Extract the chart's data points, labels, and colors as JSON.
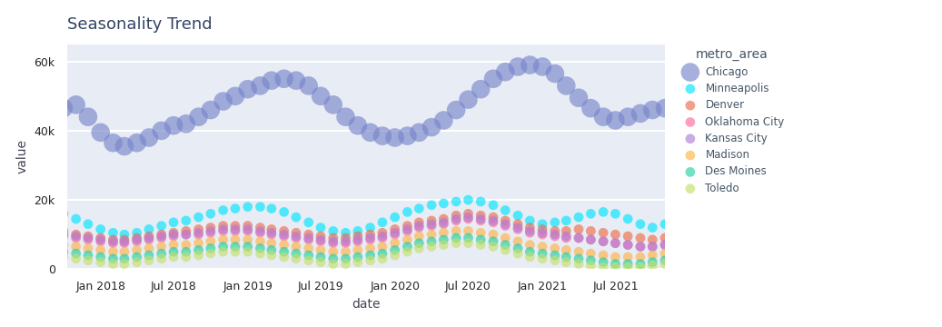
{
  "title": "Seasonality Trend",
  "xlabel": "date",
  "ylabel": "value",
  "metro_areas": [
    "Chicago",
    "Denver",
    "Des Moines",
    "Kansas City",
    "Madison",
    "Minneapolis",
    "Oklahoma City",
    "Toledo"
  ],
  "colors": {
    "Chicago": "#7986cb",
    "Denver": "#ef6c4a",
    "Des Moines": "#26d0a2",
    "Kansas City": "#b07fd4",
    "Madison": "#ffb347",
    "Minneapolis": "#00e5ff",
    "Oklahoma City": "#ff6b9d",
    "Toledo": "#c5e06a"
  },
  "n_months": 50,
  "chicago_vals": [
    46500,
    47500,
    44000,
    39500,
    36500,
    35500,
    36500,
    38000,
    40000,
    41500,
    42000,
    44000,
    46000,
    48500,
    50000,
    52000,
    53000,
    54500,
    55000,
    54500,
    53000,
    50000,
    47500,
    44000,
    41500,
    39500,
    38500,
    38000,
    38500,
    39500,
    41000,
    43000,
    46000,
    49000,
    52000,
    55000,
    57000,
    58500,
    59000,
    58500,
    56500,
    53000,
    49500,
    46500,
    44000,
    43000,
    44000,
    45000,
    46000,
    46500
  ],
  "minneapolis_vals": [
    16000,
    14500,
    13000,
    11500,
    10500,
    10000,
    10500,
    11500,
    12500,
    13500,
    14000,
    15000,
    16000,
    17000,
    17500,
    18000,
    18000,
    17500,
    16500,
    15000,
    13500,
    12000,
    11000,
    10500,
    11000,
    12000,
    13500,
    15000,
    16500,
    17500,
    18500,
    19000,
    19500,
    20000,
    19500,
    18500,
    17000,
    15500,
    14000,
    13000,
    13500,
    14000,
    15000,
    16000,
    16500,
    16000,
    14500,
    13000,
    12000,
    13000
  ],
  "denver_vals": [
    11000,
    10000,
    9500,
    9000,
    8500,
    8500,
    9000,
    9500,
    10000,
    10500,
    11000,
    11500,
    12000,
    12500,
    12500,
    12500,
    12000,
    11500,
    11000,
    10500,
    10000,
    9500,
    9000,
    9000,
    9500,
    10000,
    10500,
    11500,
    12500,
    13500,
    14000,
    14500,
    15500,
    16000,
    15500,
    15000,
    14000,
    13000,
    12000,
    11500,
    11000,
    11000,
    11500,
    11000,
    10500,
    10000,
    9500,
    9000,
    8500,
    9000
  ],
  "okc_vals": [
    9500,
    9000,
    8500,
    8000,
    7500,
    7500,
    8000,
    8500,
    9000,
    9500,
    10000,
    10000,
    10500,
    11000,
    11000,
    11000,
    10500,
    10000,
    9500,
    9000,
    8500,
    8000,
    7500,
    7500,
    8000,
    8500,
    9000,
    10000,
    11000,
    12000,
    12500,
    13000,
    14000,
    14500,
    14000,
    13500,
    12500,
    11500,
    10500,
    10000,
    9500,
    9000,
    9000,
    8500,
    8000,
    7500,
    7000,
    6500,
    6500,
    7000
  ],
  "kansas_vals": [
    10000,
    9500,
    9000,
    8500,
    8000,
    8000,
    8500,
    9000,
    9500,
    10000,
    10000,
    10500,
    11000,
    11500,
    11500,
    11500,
    11000,
    10500,
    10000,
    9500,
    9000,
    8500,
    8000,
    8000,
    8500,
    9000,
    9500,
    10500,
    11500,
    12500,
    13000,
    13500,
    14500,
    15000,
    14500,
    14000,
    13000,
    12000,
    11000,
    10500,
    10000,
    9500,
    9000,
    8500,
    8000,
    7500,
    7000,
    6500,
    6500,
    7000
  ],
  "madison_vals": [
    7000,
    6500,
    6000,
    5500,
    5000,
    5000,
    5500,
    6000,
    6500,
    7000,
    7000,
    7500,
    8000,
    8500,
    8500,
    8500,
    8000,
    7500,
    7000,
    6500,
    6000,
    5500,
    5000,
    5000,
    5500,
    6000,
    6500,
    7500,
    8500,
    9500,
    10000,
    10500,
    11000,
    11000,
    10500,
    10000,
    9000,
    8000,
    7000,
    6500,
    6000,
    5500,
    5000,
    4500,
    4000,
    3500,
    3500,
    3500,
    4000,
    4500
  ],
  "des_moines_vals": [
    5000,
    4500,
    4000,
    3500,
    3000,
    3000,
    3500,
    4000,
    4500,
    5000,
    5000,
    5500,
    6000,
    6500,
    6500,
    6500,
    6000,
    5500,
    5000,
    4500,
    4000,
    3500,
    3000,
    3000,
    3500,
    4000,
    4500,
    5500,
    6500,
    7500,
    8000,
    8500,
    9000,
    9000,
    8500,
    8000,
    7000,
    6000,
    5000,
    4500,
    4000,
    3500,
    3000,
    2500,
    2000,
    1500,
    1500,
    1500,
    2000,
    2500
  ],
  "toledo_vals": [
    3500,
    3000,
    2500,
    2000,
    1500,
    1500,
    2000,
    2500,
    3000,
    3500,
    3500,
    4000,
    4500,
    5000,
    5000,
    5000,
    4500,
    4000,
    3500,
    3000,
    2500,
    2000,
    1500,
    1500,
    2000,
    2500,
    3000,
    4000,
    5000,
    6000,
    6500,
    7000,
    7500,
    7500,
    7000,
    6500,
    5500,
    4500,
    3500,
    3000,
    2500,
    2000,
    1500,
    1000,
    500,
    500,
    500,
    500,
    1000,
    1500
  ],
  "ylim": [
    0,
    65000
  ],
  "yticks": [
    0,
    20000,
    40000,
    60000
  ],
  "ytick_labels": [
    "0",
    "20k",
    "40k",
    "60k"
  ],
  "marker_size_chicago": 220,
  "marker_size_others": 60,
  "alpha": 0.65
}
